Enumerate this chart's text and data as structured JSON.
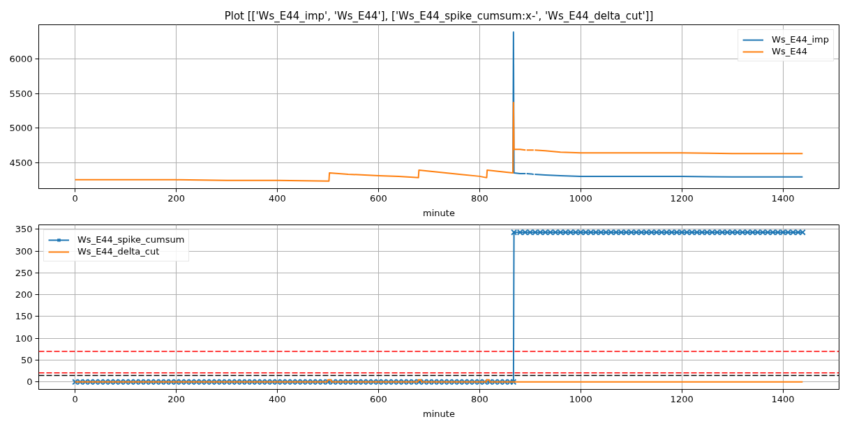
{
  "chart_data": [
    {
      "type": "line",
      "title": "Plot [['Ws_E44_imp', 'Ws_E44'], ['Ws_E44_spike_cumsum:x-', 'Ws_E44_delta_cut']]",
      "xlabel": "minute",
      "xlim": [
        -72,
        1511
      ],
      "ylim": [
        4122,
        6496
      ],
      "xticks": [
        0,
        200,
        400,
        600,
        800,
        1000,
        1200,
        1400
      ],
      "yticks": [
        4500,
        5000,
        5500,
        6000
      ],
      "grid": true,
      "legend": "top right",
      "x": [
        0,
        100,
        200,
        300,
        400,
        502,
        503,
        540,
        600,
        640,
        679,
        680,
        720,
        760,
        800,
        814,
        815,
        840,
        866,
        867,
        868,
        880,
        891,
        892,
        893,
        907,
        908,
        909,
        930,
        960,
        1000,
        1040,
        1100,
        1200,
        1300,
        1340,
        1400,
        1439
      ],
      "series": [
        {
          "name": "Ws_E44_imp",
          "color": "#1f77b4",
          "values": [
            null,
            null,
            null,
            null,
            null,
            null,
            null,
            null,
            null,
            null,
            null,
            null,
            null,
            null,
            null,
            null,
            null,
            null,
            4350,
            6390,
            4350,
            4340,
            4340,
            null,
            4340,
            4330,
            null,
            4330,
            4320,
            4310,
            4300,
            4300,
            4300,
            4300,
            4290,
            4290,
            4290,
            4290
          ]
        },
        {
          "name": "Ws_E44",
          "color": "#ff7f0e",
          "values": [
            4250,
            4250,
            4250,
            4240,
            4240,
            4230,
            4350,
            4330,
            4310,
            4300,
            4280,
            4390,
            4360,
            4330,
            4300,
            4280,
            4390,
            4370,
            4350,
            5370,
            4690,
            4690,
            4680,
            null,
            4680,
            4680,
            null,
            4680,
            4670,
            4650,
            4640,
            4640,
            4640,
            4640,
            4630,
            4630,
            4630,
            4630
          ]
        }
      ]
    },
    {
      "type": "line",
      "xlabel": "minute",
      "xlim": [
        -72,
        1511
      ],
      "ylim": [
        -17,
        360
      ],
      "xticks": [
        0,
        200,
        400,
        600,
        800,
        1000,
        1200,
        1400
      ],
      "yticks": [
        0,
        50,
        100,
        150,
        200,
        250,
        300,
        350
      ],
      "grid": true,
      "legend": "top left",
      "ref_lines": [
        {
          "axis": "y",
          "value": 70,
          "color": "#ff0000",
          "line_style": "dashed"
        },
        {
          "axis": "y",
          "value": 21,
          "color": "#ff0000",
          "line_style": "dashed"
        },
        {
          "axis": "y",
          "value": 15,
          "color": "#000000",
          "line_style": "dashed"
        }
      ],
      "series": [
        {
          "name": "Ws_E44_spike_cumsum",
          "color": "#1f77b4",
          "marker": "cross",
          "x": [
            0,
            10,
            20,
            30,
            40,
            50,
            60,
            70,
            80,
            90,
            100,
            110,
            120,
            130,
            140,
            150,
            160,
            170,
            180,
            190,
            200,
            210,
            220,
            230,
            240,
            250,
            260,
            270,
            280,
            290,
            300,
            310,
            320,
            330,
            340,
            350,
            360,
            370,
            380,
            390,
            400,
            410,
            420,
            430,
            440,
            450,
            460,
            470,
            480,
            490,
            500,
            510,
            520,
            530,
            540,
            550,
            560,
            570,
            580,
            590,
            600,
            610,
            620,
            630,
            640,
            650,
            660,
            670,
            680,
            690,
            700,
            710,
            720,
            730,
            740,
            750,
            760,
            770,
            780,
            790,
            800,
            810,
            820,
            830,
            840,
            850,
            860,
            867,
            868,
            880,
            890,
            900,
            910,
            920,
            930,
            940,
            950,
            960,
            970,
            980,
            990,
            1000,
            1010,
            1020,
            1030,
            1040,
            1050,
            1060,
            1070,
            1080,
            1090,
            1100,
            1110,
            1120,
            1130,
            1140,
            1150,
            1160,
            1170,
            1180,
            1190,
            1200,
            1210,
            1220,
            1230,
            1240,
            1250,
            1260,
            1270,
            1280,
            1290,
            1300,
            1310,
            1320,
            1330,
            1340,
            1350,
            1360,
            1370,
            1380,
            1390,
            1400,
            1410,
            1420,
            1430,
            1439
          ],
          "values": [
            0,
            0,
            0,
            0,
            0,
            0,
            0,
            0,
            0,
            0,
            0,
            0,
            0,
            0,
            0,
            0,
            0,
            0,
            0,
            0,
            0,
            0,
            0,
            0,
            0,
            0,
            0,
            0,
            0,
            0,
            0,
            0,
            0,
            0,
            0,
            0,
            0,
            0,
            0,
            0,
            0,
            0,
            0,
            0,
            0,
            0,
            0,
            0,
            0,
            0,
            0,
            0,
            0,
            0,
            0,
            0,
            0,
            0,
            0,
            0,
            0,
            0,
            0,
            0,
            0,
            0,
            0,
            0,
            0,
            0,
            0,
            0,
            0,
            0,
            0,
            0,
            0,
            0,
            0,
            0,
            0,
            0,
            0,
            0,
            0,
            0,
            0,
            0,
            343,
            343,
            343,
            343,
            343,
            343,
            343,
            343,
            343,
            343,
            343,
            343,
            343,
            343,
            343,
            343,
            343,
            343,
            343,
            343,
            343,
            343,
            343,
            343,
            343,
            343,
            343,
            343,
            343,
            343,
            343,
            343,
            343,
            343,
            343,
            343,
            343,
            343,
            343,
            343,
            343,
            343,
            343,
            343,
            343,
            343,
            343,
            343,
            343,
            343,
            343,
            343,
            343,
            343,
            343,
            343,
            343,
            343
          ]
        },
        {
          "name": "Ws_E44_delta_cut",
          "color": "#ff7f0e",
          "x": [
            0,
            499,
            500,
            506,
            507,
            678,
            679,
            684,
            685,
            813,
            814,
            819,
            820,
            1439
          ],
          "values": [
            0,
            0,
            5,
            5,
            0,
            0,
            5,
            5,
            0,
            0,
            5,
            5,
            0,
            0
          ]
        }
      ]
    }
  ]
}
